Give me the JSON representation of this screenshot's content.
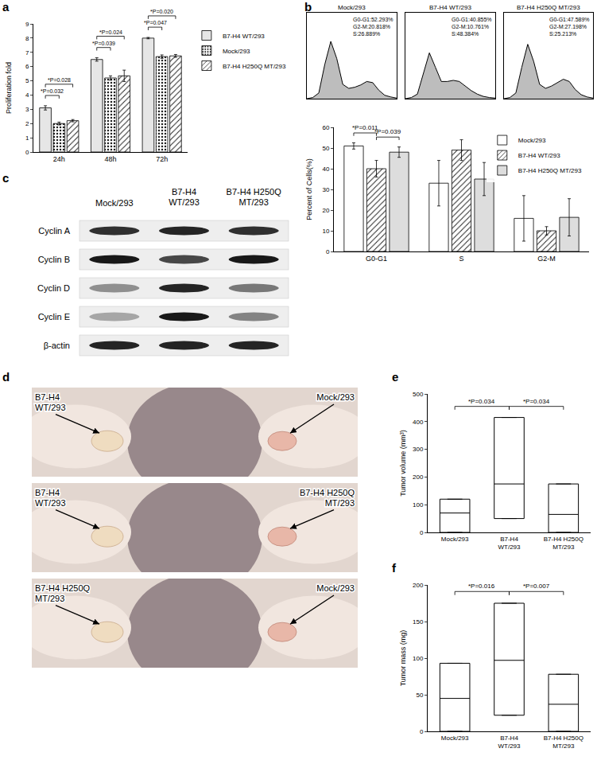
{
  "chart_data": [
    {
      "panel": "a",
      "type": "bar",
      "categories": [
        "24h",
        "48h",
        "72h"
      ],
      "series": [
        {
          "name": "B7-H4 WT/293",
          "color": "#e6e6e6",
          "values": [
            3.1,
            6.5,
            8.0
          ],
          "errors": [
            0.15,
            0.12,
            0.05
          ]
        },
        {
          "name": "Mock/293",
          "color": "#8c8c8c",
          "marker": "dotted",
          "values": [
            2.0,
            5.2,
            6.7
          ],
          "errors": [
            0.1,
            0.15,
            0.12
          ]
        },
        {
          "name": "B7-H4 H250Q MT/293",
          "color": "#d0d0d0",
          "marker": "hatched",
          "values": [
            2.2,
            5.35,
            6.75
          ],
          "errors": [
            0.08,
            0.4,
            0.1
          ]
        }
      ],
      "ylabel": "Proliferation fold",
      "ylim": [
        0,
        9
      ],
      "yticks": [
        0,
        1,
        2,
        3,
        4,
        5,
        6,
        7,
        8,
        9
      ],
      "grid": false,
      "legend": "right",
      "comparisons": [
        {
          "category": "24h",
          "from": "B7-H4 WT/293",
          "to": "Mock/293",
          "label": "*P=0.032"
        },
        {
          "category": "24h",
          "from": "B7-H4 WT/293",
          "to": "B7-H4 H250Q MT/293",
          "label": "*P=0.028"
        },
        {
          "category": "48h",
          "from": "B7-H4 WT/293",
          "to": "Mock/293",
          "label": "*P=0.039"
        },
        {
          "category": "48h",
          "from": "B7-H4 WT/293",
          "to": "B7-H4 H250Q MT/293",
          "label": "*P=0.024"
        },
        {
          "category": "72h",
          "from": "B7-H4 WT/293",
          "to": "Mock/293",
          "label": "*P=0.047"
        },
        {
          "category": "72h",
          "from": "B7-H4 WT/293",
          "to": "B7-H4 H250Q MT/293",
          "label": "*P=0.020"
        }
      ]
    },
    {
      "panel": "b",
      "type": "line",
      "title": "Mock/293",
      "x": [
        0,
        1,
        2,
        3,
        4,
        5,
        6,
        7,
        8,
        9,
        10,
        11,
        12,
        13,
        14,
        15
      ],
      "values": [
        0,
        2,
        10,
        60,
        100,
        70,
        25,
        18,
        20,
        24,
        30,
        28,
        15,
        6,
        3,
        1
      ],
      "xlim": [
        0,
        15
      ],
      "ylim": [
        0,
        150
      ],
      "tick_labels": false,
      "annotations": [
        "G0-G1:52.293%",
        "G2-M:20.818%",
        "S:26.889%"
      ]
    },
    {
      "type": "line",
      "title": "B7-H4 WT/293",
      "x": [
        0,
        1,
        2,
        3,
        4,
        5,
        6,
        7,
        8,
        9,
        10,
        11,
        12,
        13,
        14,
        15
      ],
      "values": [
        0,
        2,
        8,
        45,
        80,
        55,
        30,
        30,
        32,
        30,
        22,
        14,
        8,
        4,
        2,
        1
      ],
      "xlim": [
        0,
        15
      ],
      "ylim": [
        0,
        150
      ],
      "tick_labels": false,
      "annotations": [
        "G0-G1:40.855%",
        "G2-M:10.761%",
        "S:48.384%"
      ]
    },
    {
      "type": "line",
      "title": "B7-H4 H250Q MT/293",
      "x": [
        0,
        1,
        2,
        3,
        4,
        5,
        6,
        7,
        8,
        9,
        10,
        11,
        12,
        13,
        14,
        15
      ],
      "values": [
        0,
        2,
        10,
        55,
        95,
        65,
        25,
        18,
        22,
        28,
        34,
        30,
        16,
        7,
        3,
        1
      ],
      "xlim": [
        0,
        15
      ],
      "ylim": [
        0,
        150
      ],
      "tick_labels": false,
      "annotations": [
        "G0-G1:47.589%",
        "G2-M:27.198%",
        "S:25.213%"
      ]
    },
    {
      "type": "bar",
      "categories": [
        "G0-G1",
        "S",
        "G2-M"
      ],
      "series": [
        {
          "name": "Mock/293",
          "color": "#ffffff",
          "values": [
            51,
            33,
            16
          ],
          "errors": [
            1.5,
            11,
            11
          ]
        },
        {
          "name": "B7-H4 WT/293",
          "color": "#5a5a5a",
          "marker": "hatched",
          "values": [
            40,
            49,
            10
          ],
          "errors": [
            4,
            5,
            2
          ]
        },
        {
          "name": "B7-H4 H250Q MT/293",
          "color": "#dddddd",
          "values": [
            48,
            35,
            16.5
          ],
          "errors": [
            2.5,
            8,
            9
          ]
        }
      ],
      "ylabel": "Percent of Cells(%)",
      "ylim": [
        0,
        60
      ],
      "yticks": [
        0,
        10,
        20,
        30,
        40,
        50,
        60
      ],
      "grid": false,
      "legend": "upper right",
      "comparisons": [
        {
          "category": "G0-G1",
          "from": "Mock/293",
          "to": "B7-H4 WT/293",
          "label": "*P=0.011"
        },
        {
          "category": "G0-G1",
          "from": "B7-H4 WT/293",
          "to": "B7-H4 H250Q MT/293",
          "label": "*P=0.039"
        }
      ]
    },
    {
      "panel": "c",
      "type": "western_blot",
      "lanes": [
        "Mock/293",
        "B7-H4 WT/293",
        "B7-H4 H250Q MT/293"
      ],
      "rows": [
        {
          "name": "Cyclin A",
          "intensity": [
            0.8,
            0.85,
            0.8
          ]
        },
        {
          "name": "Cyclin B",
          "intensity": [
            0.9,
            0.7,
            0.9
          ]
        },
        {
          "name": "Cyclin D",
          "intensity": [
            0.4,
            0.85,
            0.5
          ]
        },
        {
          "name": "Cyclin E",
          "intensity": [
            0.3,
            0.9,
            0.45
          ]
        },
        {
          "name": "β-actin",
          "intensity": [
            0.85,
            0.85,
            0.85
          ]
        }
      ]
    },
    {
      "panel": "d",
      "type": "photo",
      "photos": [
        {
          "left": "B7-H4 WT/293",
          "right": "Mock/293"
        },
        {
          "left": "B7-H4 WT/293",
          "right": "B7-H4 H250Q MT/293"
        },
        {
          "left": "B7-H4 H250Q MT/293",
          "right": "Mock/293"
        }
      ]
    },
    {
      "panel": "e",
      "type": "box",
      "categories": [
        "Mock/293",
        "B7-H4 WT/293",
        "B7-H4 H250Q MT/293"
      ],
      "q1": [
        0,
        50,
        0
      ],
      "median": [
        70,
        175,
        65
      ],
      "q3": [
        120,
        415,
        175
      ],
      "ylabel": "Tumor volume (mm³)",
      "ylim": [
        0,
        500
      ],
      "yticks": [
        0,
        100,
        200,
        300,
        400,
        500
      ],
      "comparisons": [
        {
          "from": "Mock/293",
          "to": "B7-H4 WT/293",
          "label": "*P=0.034"
        },
        {
          "from": "B7-H4 WT/293",
          "to": "B7-H4 H250Q MT/293",
          "label": "*P=0.034"
        }
      ]
    },
    {
      "panel": "f",
      "type": "box",
      "categories": [
        "Mock/293",
        "B7-H4 WT/293",
        "B7-H4 H250Q MT/293"
      ],
      "q1": [
        0,
        22,
        0
      ],
      "median": [
        45,
        97,
        37
      ],
      "q3": [
        93,
        175,
        78
      ],
      "ylabel": "Tumor mass (mg)",
      "ylim": [
        0,
        200
      ],
      "yticks": [
        0,
        50,
        100,
        150,
        200
      ],
      "comparisons": [
        {
          "from": "Mock/293",
          "to": "B7-H4 WT/293",
          "label": "*P=0.016"
        },
        {
          "from": "B7-H4 WT/293",
          "to": "B7-H4 H250Q MT/293",
          "label": "*P=0.007"
        }
      ]
    }
  ]
}
